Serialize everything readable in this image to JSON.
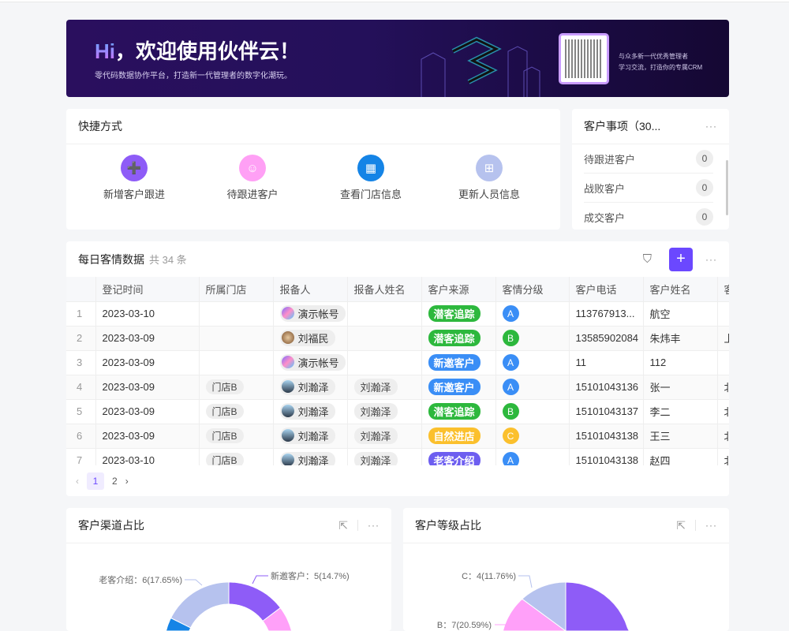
{
  "banner": {
    "hi": "Hi",
    "title": "，欢迎使用伙伴云！",
    "subtitle": "零代码数据协作平台，打造新一代管理者的数字化潮玩。",
    "qr_text_1": "与众多新一代优秀管理者",
    "qr_text_2": "学习交流，打造你的专属CRM"
  },
  "shortcuts": {
    "title": "快捷方式",
    "items": [
      {
        "label": "新增客户跟进",
        "icon": "add-user-icon",
        "color": "#8e5cf7"
      },
      {
        "label": "待跟进客户",
        "icon": "user-icon",
        "color": "#ffa0f5"
      },
      {
        "label": "查看门店信息",
        "icon": "building-icon",
        "color": "#1584e6"
      },
      {
        "label": "更新人员信息",
        "icon": "grid-icon",
        "color": "#b6c2ee"
      }
    ]
  },
  "todo": {
    "title": "客户事项（30...",
    "items": [
      {
        "label": "待跟进客户",
        "count": "0"
      },
      {
        "label": "战败客户",
        "count": "0"
      },
      {
        "label": "成交客户",
        "count": "0"
      }
    ]
  },
  "table": {
    "title": "每日客情数据",
    "count": "共 34 条",
    "columns": [
      "",
      "登记时间",
      "所属门店",
      "报备人",
      "报备人姓名",
      "客户来源",
      "客情分级",
      "客户电话",
      "客户姓名",
      "客"
    ],
    "rows": [
      {
        "idx": "1",
        "date": "2023-03-10",
        "store": "",
        "reporter": "演示帐号",
        "avatar": "logo",
        "rname": "",
        "source": "潜客追踪",
        "level": "A",
        "phone": "113767913...",
        "name": "航空",
        "extra": ""
      },
      {
        "idx": "2",
        "date": "2023-03-09",
        "store": "",
        "reporter": "刘福民",
        "avatar": "photo",
        "rname": "",
        "source": "潜客追踪",
        "level": "B",
        "phone": "13585902084",
        "name": "朱炜丰",
        "extra": "上"
      },
      {
        "idx": "3",
        "date": "2023-03-09",
        "store": "",
        "reporter": "演示帐号",
        "avatar": "logo",
        "rname": "",
        "source": "新邀客户",
        "level": "A",
        "phone": "11",
        "name": "112",
        "extra": ""
      },
      {
        "idx": "4",
        "date": "2023-03-09",
        "store": "门店B",
        "reporter": "刘瀚泽",
        "avatar": "photo2",
        "rname": "刘瀚泽",
        "source": "新邀客户",
        "level": "A",
        "phone": "15101043136",
        "name": "张一",
        "extra": "北"
      },
      {
        "idx": "5",
        "date": "2023-03-09",
        "store": "门店B",
        "reporter": "刘瀚泽",
        "avatar": "photo2",
        "rname": "刘瀚泽",
        "source": "潜客追踪",
        "level": "B",
        "phone": "15101043137",
        "name": "李二",
        "extra": "北"
      },
      {
        "idx": "6",
        "date": "2023-03-09",
        "store": "门店B",
        "reporter": "刘瀚泽",
        "avatar": "photo2",
        "rname": "刘瀚泽",
        "source": "自然进店",
        "level": "C",
        "phone": "15101043138",
        "name": "王三",
        "extra": "北"
      },
      {
        "idx": "7",
        "date": "2023-03-10",
        "store": "门店B",
        "reporter": "刘瀚泽",
        "avatar": "photo2",
        "rname": "刘瀚泽",
        "source": "老客介绍",
        "level": "A",
        "phone": "15101043138",
        "name": "赵四",
        "extra": "北"
      }
    ],
    "pager": {
      "pages": [
        "1",
        "2"
      ],
      "current": "1"
    }
  },
  "colors": {
    "source": {
      "潜客追踪": "#2db83d",
      "新邀客户": "#3a8ef6",
      "自然进店": "#fbc02d",
      "老客介绍": "#6d5ef0"
    },
    "level": {
      "A": "#3a8ef6",
      "B": "#2db83d",
      "C": "#fbc02d"
    },
    "accent": "#6b48ff"
  },
  "chart_data": [
    {
      "type": "pie",
      "donut": true,
      "title": "客户渠道占比",
      "slices": [
        {
          "label": "新邀客户",
          "value": 5,
          "percent": 14.7,
          "color": "#8e5cf7"
        },
        {
          "label": "老客介绍",
          "value": 6,
          "percent": 17.65,
          "color": "#b6c2ee"
        }
      ],
      "other_visible_colors": [
        "#ffa0f9",
        "#1584e6"
      ]
    },
    {
      "type": "pie",
      "donut": false,
      "title": "客户等级占比",
      "slices": [
        {
          "label": "B",
          "value": 7,
          "percent": 20.59,
          "color": "#ffa0f9"
        },
        {
          "label": "C",
          "value": 4,
          "percent": 11.76,
          "color": "#b6c2ee"
        }
      ],
      "other_visible_colors": [
        "#8e5cf7"
      ]
    }
  ]
}
